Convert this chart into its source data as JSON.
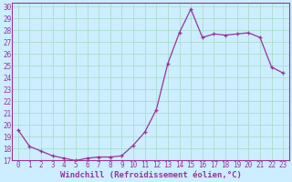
{
  "x": [
    0,
    1,
    2,
    3,
    4,
    5,
    6,
    7,
    8,
    9,
    10,
    11,
    12,
    13,
    14,
    15,
    16,
    17,
    18,
    19,
    20,
    21,
    22,
    23
  ],
  "y": [
    19.6,
    18.2,
    17.8,
    17.4,
    17.2,
    17.0,
    17.2,
    17.3,
    17.3,
    17.4,
    18.3,
    19.4,
    21.3,
    25.2,
    27.8,
    29.8,
    27.4,
    27.7,
    27.6,
    27.7,
    27.8,
    27.4,
    24.9,
    24.4
  ],
  "line_color": "#993399",
  "marker": "+",
  "marker_size": 3,
  "bg_color": "#cceeff",
  "grid_color": "#aaddcc",
  "xlabel": "Windchill (Refroidissement éolien,°C)",
  "ylim": [
    17,
    30
  ],
  "xlim": [
    -0.5,
    23.5
  ],
  "yticks": [
    17,
    18,
    19,
    20,
    21,
    22,
    23,
    24,
    25,
    26,
    27,
    28,
    29,
    30
  ],
  "xticks": [
    0,
    1,
    2,
    3,
    4,
    5,
    6,
    7,
    8,
    9,
    10,
    11,
    12,
    13,
    14,
    15,
    16,
    17,
    18,
    19,
    20,
    21,
    22,
    23
  ],
  "tick_fontsize": 5.5,
  "xlabel_fontsize": 6.5,
  "label_color": "#993399",
  "spine_color": "#993399",
  "linewidth": 0.9
}
